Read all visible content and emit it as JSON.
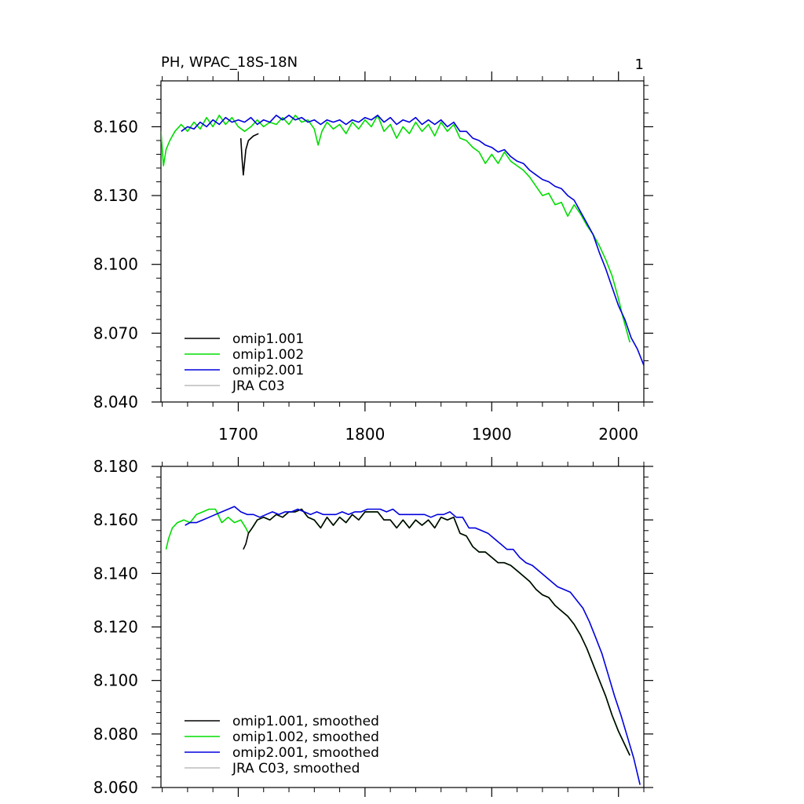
{
  "header": {
    "title": "PH, WPAC_18S-18N",
    "page_number": "1"
  },
  "chart_data": [
    {
      "type": "line",
      "title": "PH, WPAC_18S-18N",
      "xlabel": "",
      "ylabel": "",
      "xlim": [
        1639,
        2020
      ],
      "ylim": [
        8.04,
        8.18
      ],
      "x_ticks": [
        1700,
        1800,
        1900,
        2000
      ],
      "x_tick_labels": [
        "1700",
        "1800",
        "1900",
        "2000"
      ],
      "y_ticks": [
        8.04,
        8.07,
        8.1,
        8.13,
        8.16
      ],
      "y_tick_labels": [
        "8.040",
        "8.070",
        "8.100",
        "8.130",
        "8.160"
      ],
      "legend_position": "bottom-left",
      "grid": false,
      "series": [
        {
          "name": "omip1.001",
          "color": "#000000",
          "x": [
            1702,
            1703,
            1704,
            1706,
            1708,
            1712,
            1716
          ],
          "y": [
            8.155,
            8.146,
            8.139,
            8.15,
            8.154,
            8.156,
            8.157
          ]
        },
        {
          "name": "omip1.002",
          "color": "#00dd00",
          "x": [
            1639,
            1641,
            1643,
            1646,
            1650,
            1655,
            1660,
            1665,
            1670,
            1675,
            1680,
            1685,
            1690,
            1695,
            1700,
            1705,
            1710,
            1715,
            1720,
            1725,
            1730,
            1735,
            1740,
            1745,
            1750,
            1755,
            1760,
            1763,
            1766,
            1770,
            1775,
            1780,
            1785,
            1790,
            1795,
            1800,
            1805,
            1810,
            1815,
            1820,
            1825,
            1830,
            1835,
            1840,
            1845,
            1850,
            1855,
            1860,
            1865,
            1870,
            1875,
            1880,
            1885,
            1890,
            1895,
            1900,
            1905,
            1910,
            1915,
            1920,
            1925,
            1930,
            1935,
            1940,
            1945,
            1950,
            1955,
            1960,
            1965,
            1970,
            1975,
            1980,
            1985,
            1990,
            1995,
            2000,
            2003,
            2006,
            2009
          ],
          "y": [
            8.158,
            8.143,
            8.15,
            8.154,
            8.158,
            8.161,
            8.158,
            8.162,
            8.159,
            8.164,
            8.16,
            8.165,
            8.161,
            8.164,
            8.16,
            8.158,
            8.16,
            8.163,
            8.16,
            8.162,
            8.161,
            8.164,
            8.161,
            8.165,
            8.162,
            8.163,
            8.159,
            8.152,
            8.158,
            8.162,
            8.159,
            8.161,
            8.157,
            8.162,
            8.159,
            8.163,
            8.16,
            8.165,
            8.158,
            8.161,
            8.155,
            8.16,
            8.157,
            8.162,
            8.158,
            8.161,
            8.156,
            8.162,
            8.158,
            8.161,
            8.155,
            8.154,
            8.151,
            8.149,
            8.144,
            8.148,
            8.144,
            8.149,
            8.145,
            8.143,
            8.141,
            8.138,
            8.134,
            8.13,
            8.131,
            8.126,
            8.127,
            8.121,
            8.126,
            8.122,
            8.117,
            8.113,
            8.108,
            8.102,
            8.095,
            8.085,
            8.078,
            8.072,
            8.066
          ]
        },
        {
          "name": "omip2.001",
          "color": "#0000dd",
          "x": [
            1655,
            1660,
            1665,
            1670,
            1675,
            1680,
            1685,
            1690,
            1695,
            1700,
            1705,
            1710,
            1715,
            1720,
            1725,
            1730,
            1735,
            1740,
            1745,
            1750,
            1755,
            1760,
            1765,
            1770,
            1775,
            1780,
            1785,
            1790,
            1795,
            1800,
            1805,
            1810,
            1815,
            1820,
            1825,
            1830,
            1835,
            1840,
            1845,
            1850,
            1855,
            1860,
            1865,
            1870,
            1875,
            1880,
            1885,
            1890,
            1895,
            1900,
            1905,
            1910,
            1915,
            1920,
            1925,
            1930,
            1935,
            1940,
            1945,
            1950,
            1955,
            1960,
            1965,
            1970,
            1975,
            1980,
            1985,
            1990,
            1995,
            2000,
            2005,
            2010,
            2015,
            2020
          ],
          "y": [
            8.158,
            8.16,
            8.159,
            8.162,
            8.16,
            8.163,
            8.161,
            8.164,
            8.162,
            8.163,
            8.162,
            8.164,
            8.161,
            8.163,
            8.162,
            8.165,
            8.163,
            8.165,
            8.163,
            8.164,
            8.162,
            8.163,
            8.161,
            8.163,
            8.162,
            8.163,
            8.161,
            8.163,
            8.162,
            8.164,
            8.163,
            8.165,
            8.162,
            8.164,
            8.161,
            8.163,
            8.162,
            8.164,
            8.161,
            8.163,
            8.161,
            8.163,
            8.16,
            8.162,
            8.158,
            8.158,
            8.155,
            8.154,
            8.152,
            8.151,
            8.149,
            8.15,
            8.147,
            8.145,
            8.144,
            8.141,
            8.139,
            8.137,
            8.136,
            8.134,
            8.133,
            8.13,
            8.128,
            8.123,
            8.118,
            8.113,
            8.105,
            8.098,
            8.09,
            8.082,
            8.076,
            8.068,
            8.063,
            8.056
          ]
        },
        {
          "name": "JRA C03",
          "color": "#bbbbbb",
          "x": [],
          "y": []
        }
      ]
    },
    {
      "type": "line",
      "title": "",
      "xlabel": "",
      "ylabel": "",
      "xlim": [
        1639,
        2020
      ],
      "ylim": [
        8.06,
        8.18
      ],
      "x_ticks": [
        1700,
        1800,
        1900,
        2000
      ],
      "x_tick_labels": [],
      "y_ticks": [
        8.06,
        8.08,
        8.1,
        8.12,
        8.14,
        8.16,
        8.18
      ],
      "y_tick_labels": [
        "8.060",
        "8.080",
        "8.100",
        "8.120",
        "8.140",
        "8.160",
        "8.180"
      ],
      "legend_position": "bottom-left",
      "grid": false,
      "series": [
        {
          "name": "omip1.001, smoothed",
          "color": "#000000",
          "x": [
            1704,
            1706,
            1708,
            1711,
            1715,
            1720,
            1725,
            1730,
            1735,
            1740,
            1745,
            1750,
            1755,
            1760,
            1765,
            1770,
            1775,
            1780,
            1785,
            1790,
            1795,
            1800,
            1805,
            1810,
            1815,
            1820,
            1825,
            1830,
            1835,
            1840,
            1845,
            1850,
            1855,
            1860,
            1865,
            1870,
            1875,
            1880,
            1885,
            1890,
            1895,
            1900,
            1905,
            1910,
            1915,
            1920,
            1925,
            1930,
            1935,
            1940,
            1945,
            1950,
            1955,
            1960,
            1965,
            1970,
            1975,
            1980,
            1985,
            1990,
            1995,
            2000,
            2005,
            2009
          ],
          "y": [
            8.149,
            8.151,
            8.155,
            8.157,
            8.16,
            8.161,
            8.16,
            8.162,
            8.161,
            8.163,
            8.163,
            8.164,
            8.161,
            8.16,
            8.157,
            8.161,
            8.158,
            8.161,
            8.159,
            8.162,
            8.16,
            8.163,
            8.163,
            8.163,
            8.16,
            8.16,
            8.157,
            8.16,
            8.157,
            8.16,
            8.158,
            8.16,
            8.157,
            8.161,
            8.16,
            8.161,
            8.155,
            8.154,
            8.15,
            8.148,
            8.148,
            8.146,
            8.144,
            8.144,
            8.143,
            8.141,
            8.139,
            8.137,
            8.134,
            8.132,
            8.131,
            8.128,
            8.126,
            8.124,
            8.121,
            8.117,
            8.112,
            8.106,
            8.1,
            8.094,
            8.087,
            8.081,
            8.076,
            8.072
          ]
        },
        {
          "name": "omip1.002, smoothed",
          "color": "#00dd00",
          "x": [
            1643,
            1645,
            1648,
            1652,
            1657,
            1662,
            1667,
            1672,
            1677,
            1682,
            1687,
            1692,
            1697,
            1702,
            1706,
            1708,
            1711,
            1715,
            1720,
            1725,
            1730,
            1735,
            1740,
            1745,
            1750,
            1755,
            1760,
            1765,
            1770,
            1775,
            1780,
            1785,
            1790,
            1795,
            1800,
            1805,
            1810,
            1815,
            1820,
            1825,
            1830,
            1835,
            1840,
            1845,
            1850,
            1855,
            1860,
            1865,
            1870,
            1875,
            1880,
            1885,
            1890,
            1895,
            1900,
            1905,
            1910,
            1915,
            1920,
            1925,
            1930,
            1935,
            1940,
            1945,
            1950,
            1955,
            1960,
            1965,
            1970,
            1975,
            1980,
            1985,
            1990,
            1995,
            2000,
            2005,
            2009
          ],
          "y": [
            8.149,
            8.153,
            8.157,
            8.159,
            8.16,
            8.159,
            8.162,
            8.163,
            8.164,
            8.164,
            8.159,
            8.161,
            8.159,
            8.16,
            8.157,
            8.155,
            8.157,
            8.16,
            8.161,
            8.16,
            8.162,
            8.161,
            8.163,
            8.163,
            8.164,
            8.161,
            8.16,
            8.157,
            8.161,
            8.158,
            8.161,
            8.159,
            8.162,
            8.16,
            8.163,
            8.163,
            8.163,
            8.16,
            8.16,
            8.157,
            8.16,
            8.157,
            8.16,
            8.158,
            8.16,
            8.157,
            8.161,
            8.16,
            8.161,
            8.155,
            8.154,
            8.15,
            8.148,
            8.148,
            8.146,
            8.144,
            8.144,
            8.143,
            8.141,
            8.139,
            8.137,
            8.134,
            8.132,
            8.131,
            8.128,
            8.126,
            8.124,
            8.121,
            8.117,
            8.112,
            8.106,
            8.1,
            8.094,
            8.087,
            8.081,
            8.076,
            8.072
          ]
        },
        {
          "name": "omip2.001, smoothed",
          "color": "#0000dd",
          "x": [
            1658,
            1662,
            1667,
            1672,
            1677,
            1682,
            1687,
            1692,
            1697,
            1702,
            1707,
            1712,
            1717,
            1722,
            1727,
            1732,
            1737,
            1742,
            1747,
            1752,
            1757,
            1762,
            1767,
            1772,
            1777,
            1782,
            1787,
            1792,
            1797,
            1802,
            1807,
            1812,
            1817,
            1822,
            1827,
            1832,
            1837,
            1842,
            1847,
            1852,
            1857,
            1862,
            1867,
            1872,
            1877,
            1882,
            1887,
            1892,
            1897,
            1902,
            1907,
            1912,
            1917,
            1922,
            1927,
            1932,
            1937,
            1942,
            1947,
            1952,
            1957,
            1962,
            1967,
            1972,
            1977,
            1982,
            1987,
            1992,
            1997,
            2002,
            2007,
            2012,
            2017
          ],
          "y": [
            8.158,
            8.159,
            8.159,
            8.16,
            8.161,
            8.162,
            8.163,
            8.164,
            8.165,
            8.163,
            8.162,
            8.162,
            8.161,
            8.162,
            8.163,
            8.162,
            8.163,
            8.163,
            8.164,
            8.163,
            8.162,
            8.163,
            8.162,
            8.162,
            8.162,
            8.163,
            8.162,
            8.163,
            8.163,
            8.164,
            8.164,
            8.164,
            8.163,
            8.164,
            8.162,
            8.162,
            8.162,
            8.162,
            8.162,
            8.161,
            8.162,
            8.162,
            8.163,
            8.161,
            8.161,
            8.157,
            8.157,
            8.156,
            8.155,
            8.153,
            8.151,
            8.149,
            8.149,
            8.146,
            8.144,
            8.143,
            8.141,
            8.139,
            8.137,
            8.135,
            8.134,
            8.133,
            8.13,
            8.127,
            8.122,
            8.116,
            8.11,
            8.102,
            8.094,
            8.087,
            8.079,
            8.071,
            8.061
          ]
        },
        {
          "name": "JRA C03, smoothed",
          "color": "#bbbbbb",
          "x": [],
          "y": []
        }
      ]
    }
  ]
}
